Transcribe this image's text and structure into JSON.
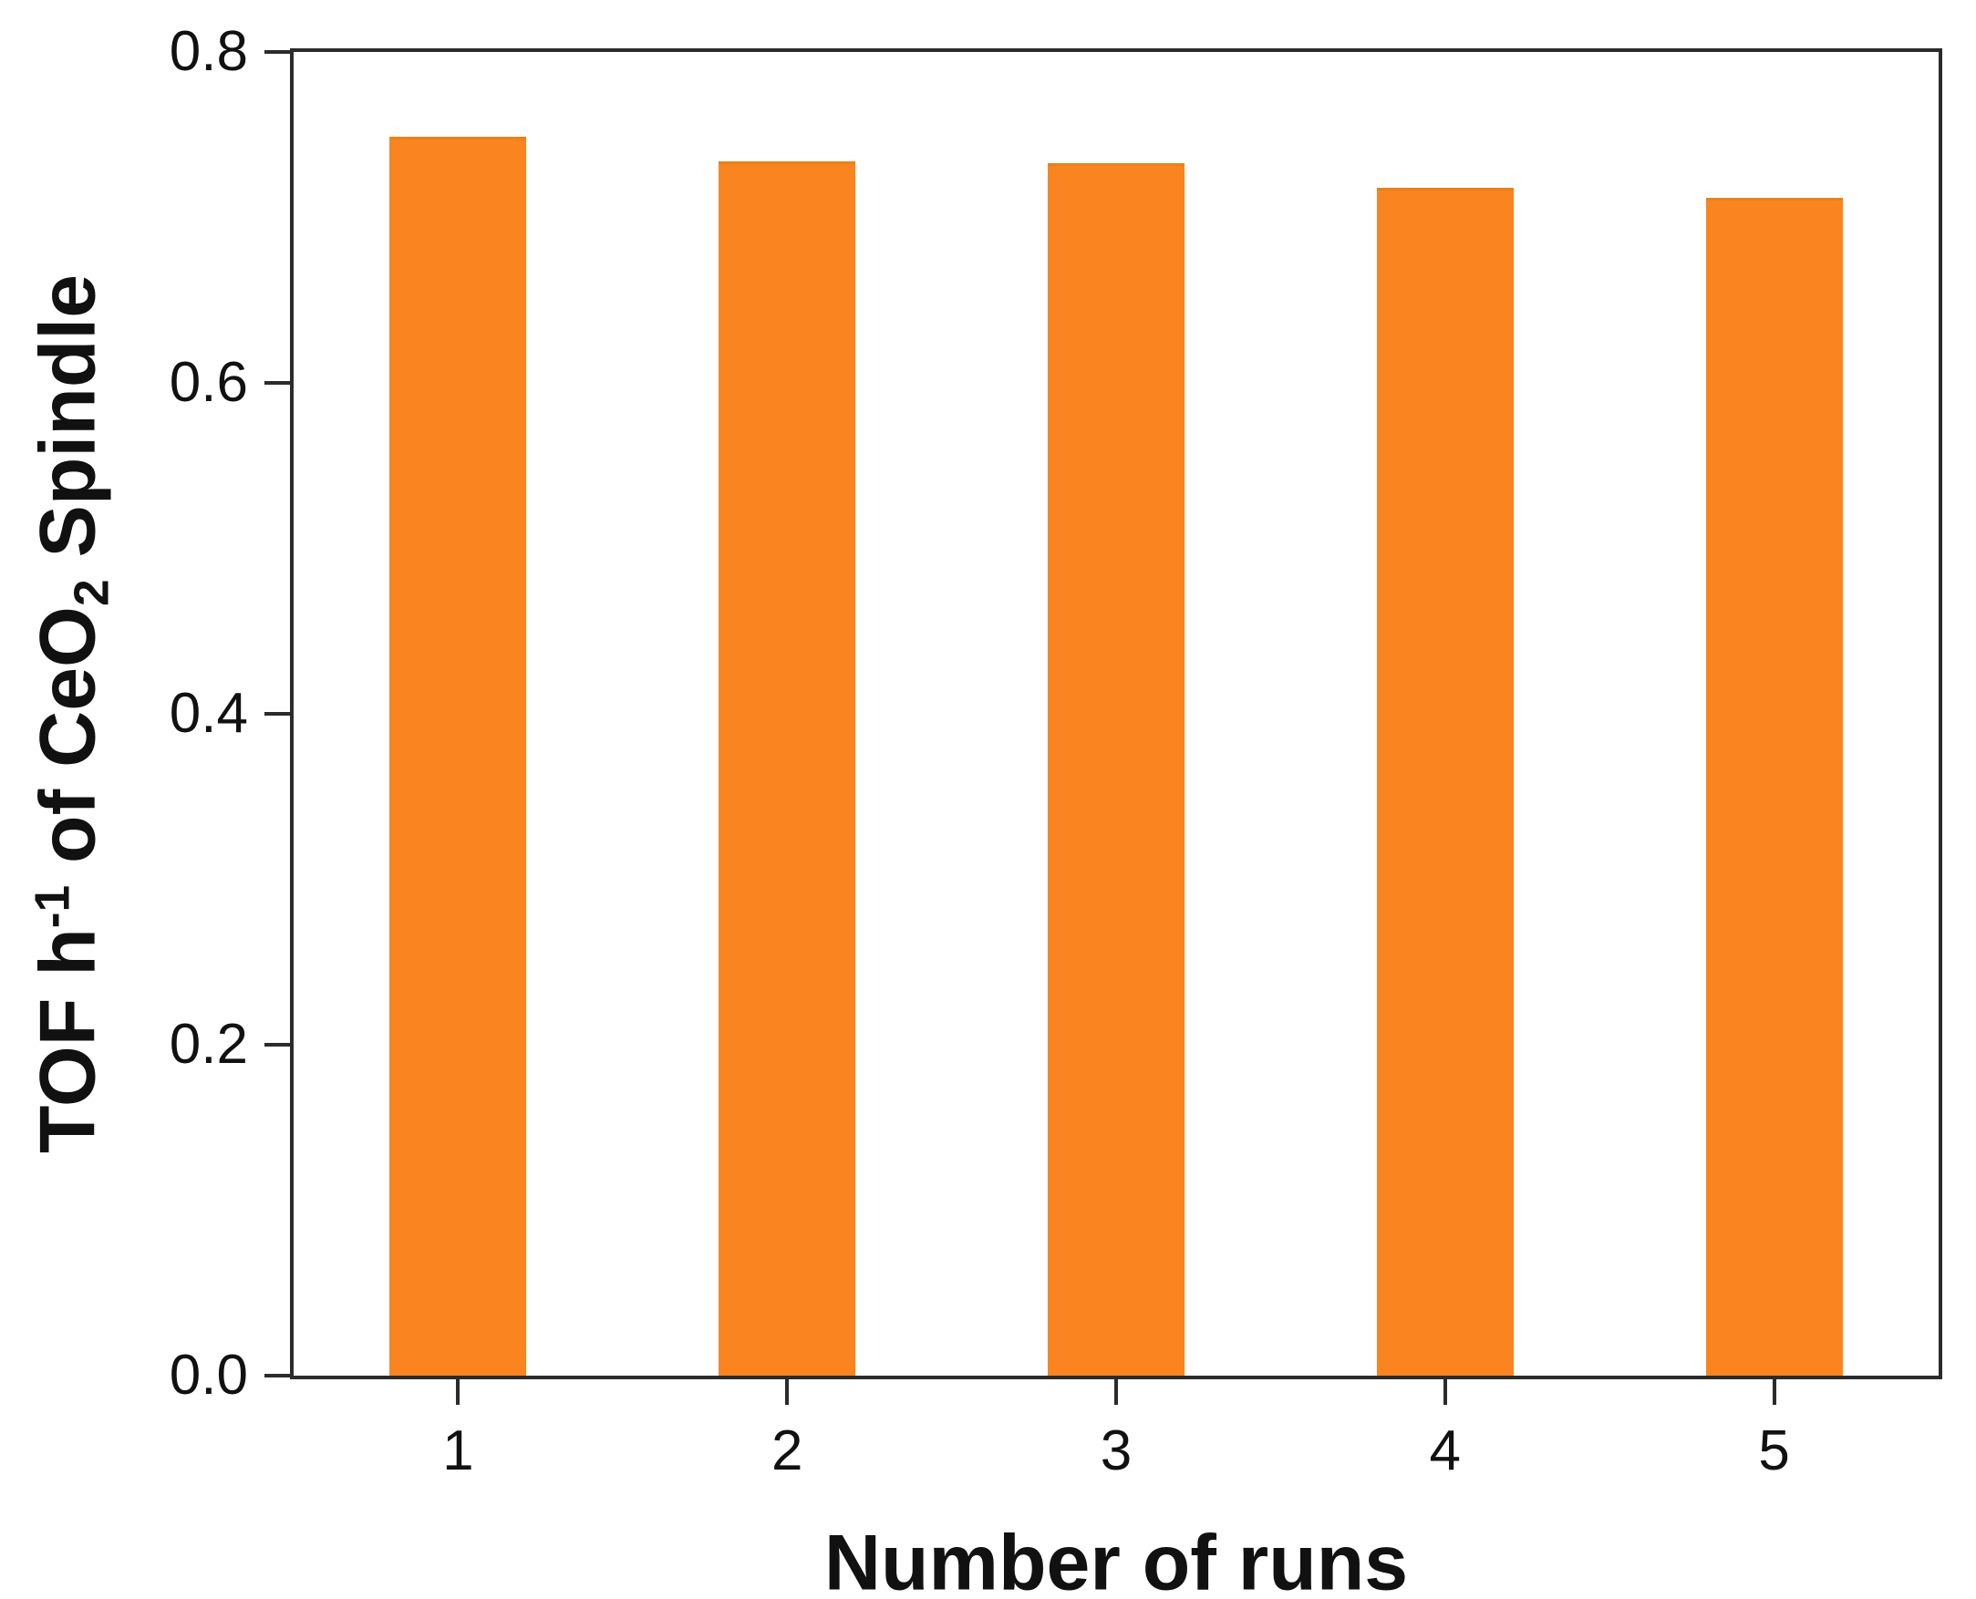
{
  "chart_data": {
    "type": "bar",
    "title": "",
    "categories": [
      "1",
      "2",
      "3",
      "4",
      "5"
    ],
    "values": [
      0.749,
      0.734,
      0.733,
      0.718,
      0.712
    ],
    "xlabel": "Number of runs",
    "ylabel": "TOF h-1 of CeO2 Spindle",
    "ylabel_rich": [
      {
        "t": "TOF h"
      },
      {
        "t": "-1",
        "style": "sup"
      },
      {
        "t": " of CeO"
      },
      {
        "t": "2",
        "style": "sub"
      },
      {
        "t": " Spindle"
      }
    ],
    "ylim": [
      0.0,
      0.8
    ],
    "yticks": [
      0.0,
      0.2,
      0.4,
      0.6,
      0.8
    ],
    "ytick_labels": [
      "0.0",
      "0.2",
      "0.4",
      "0.6",
      "0.8"
    ],
    "grid": "off",
    "legend": "none",
    "frame": "full-box",
    "tick_direction": "out",
    "colors": {
      "bar_fill": "#FA8420",
      "bar_top_edge": "#E8821A",
      "axis": "#2b2b2b",
      "text": "#111111",
      "background": "#ffffff"
    }
  }
}
